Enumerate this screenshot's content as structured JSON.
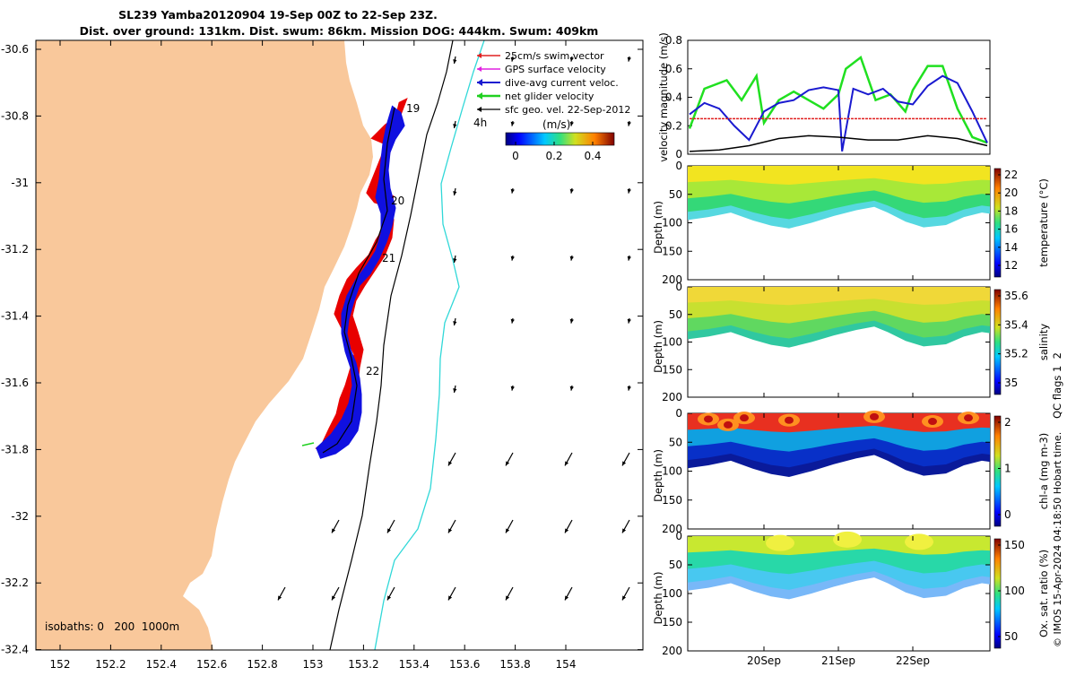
{
  "title_line1": "SL239 Yamba20120904 19-Sep 00Z to 22-Sep 23Z.",
  "title_line2": "Dist. over ground: 131km. Dist. swum: 86km. Mission DOG: 444km. Swum: 409km",
  "map": {
    "x_ticks": [
      "152",
      "152.2",
      "152.4",
      "152.6",
      "152.8",
      "153",
      "153.2",
      "153.4",
      "153.6",
      "153.8",
      "154"
    ],
    "y_ticks": [
      "-30.6",
      "-30.8",
      "-31",
      "-31.2",
      "-31.4",
      "-31.6",
      "-31.8",
      "-32",
      "-32.2",
      "-32.4"
    ],
    "legend": [
      {
        "label": "25cm/s swim vector",
        "color": "#e02020"
      },
      {
        "label": "GPS surface velocity",
        "color": "#e020e0"
      },
      {
        "label": "dive-avg current veloc.",
        "color": "#1a1ad0"
      },
      {
        "label": "net glider velocity",
        "color": "#20d020"
      },
      {
        "label": "sfc geo. vel. 22-Sep-2012",
        "color": "#000000"
      }
    ],
    "legend_extra": "4h",
    "colorbar_title": "(m/s)",
    "colorbar_ticks": [
      "0",
      "0.2",
      "0.4"
    ],
    "day_labels": [
      "19",
      "20",
      "21",
      "22"
    ],
    "isobaths_text": "isobaths: 0   200  1000m",
    "land_color": "#f9c89b"
  },
  "chart_data": [
    {
      "type": "line",
      "ylabel": "velocity magnitude (m/s)",
      "ylim": [
        0,
        0.8
      ],
      "y_ticks": [
        "0",
        "0.2",
        "0.4",
        "0.6",
        "0.8"
      ],
      "x_domain_days": [
        19,
        23
      ],
      "series": [
        {
          "color": "#20e020",
          "x": [
            19.0,
            19.2,
            19.5,
            19.7,
            19.9,
            20.0,
            20.2,
            20.4,
            20.6,
            20.8,
            21.0,
            21.1,
            21.3,
            21.5,
            21.7,
            21.9,
            22.0,
            22.2,
            22.4,
            22.6,
            22.8,
            23.0
          ],
          "values": [
            0.18,
            0.46,
            0.52,
            0.38,
            0.55,
            0.22,
            0.38,
            0.44,
            0.38,
            0.32,
            0.42,
            0.6,
            0.68,
            0.38,
            0.42,
            0.3,
            0.45,
            0.62,
            0.62,
            0.32,
            0.12,
            0.08
          ]
        },
        {
          "color": "#1a1ad0",
          "x": [
            19.0,
            19.2,
            19.4,
            19.6,
            19.8,
            20.0,
            20.2,
            20.4,
            20.6,
            20.8,
            21.0,
            21.05,
            21.2,
            21.4,
            21.6,
            21.8,
            22.0,
            22.2,
            22.4,
            22.6,
            22.8,
            23.0
          ],
          "values": [
            0.28,
            0.36,
            0.32,
            0.2,
            0.1,
            0.3,
            0.36,
            0.38,
            0.45,
            0.47,
            0.45,
            0.02,
            0.46,
            0.42,
            0.46,
            0.37,
            0.35,
            0.48,
            0.55,
            0.5,
            0.3,
            0.08
          ]
        },
        {
          "color": "#e02020",
          "x": [
            19.0,
            23.0
          ],
          "values": [
            0.25,
            0.25
          ]
        },
        {
          "color": "#000000",
          "x": [
            19.0,
            19.4,
            19.8,
            20.2,
            20.6,
            21.0,
            21.4,
            21.8,
            22.2,
            22.6,
            23.0
          ],
          "values": [
            0.02,
            0.03,
            0.06,
            0.11,
            0.13,
            0.12,
            0.1,
            0.1,
            0.13,
            0.11,
            0.06
          ]
        }
      ]
    },
    {
      "type": "heatmap",
      "ylabel": "Depth (m)",
      "ylim": [
        200,
        0
      ],
      "y_ticks": [
        "0",
        "50",
        "100",
        "150",
        "200"
      ],
      "colorbar_label": "temperature (°C)",
      "colorbar_ticks": [
        "12",
        "14",
        "16",
        "18",
        "20",
        "22"
      ]
    },
    {
      "type": "heatmap",
      "ylabel": "Depth (m)",
      "ylim": [
        200,
        0
      ],
      "y_ticks": [
        "0",
        "50",
        "100",
        "150",
        "200"
      ],
      "colorbar_label": "salinity",
      "colorbar_ticks": [
        "35",
        "35.2",
        "35.4",
        "35.6"
      ]
    },
    {
      "type": "heatmap",
      "ylabel": "Depth (m)",
      "ylim": [
        200,
        0
      ],
      "y_ticks": [
        "0",
        "50",
        "100",
        "150",
        "200"
      ],
      "colorbar_label": "chl-a (mg m-3)",
      "colorbar_ticks": [
        "0",
        "1",
        "2"
      ]
    },
    {
      "type": "heatmap",
      "ylabel": "Depth (m)",
      "ylim": [
        200,
        0
      ],
      "y_ticks": [
        "0",
        "50",
        "100",
        "150",
        "200"
      ],
      "x_ticks": [
        "20Sep",
        "21Sep",
        "22Sep"
      ],
      "colorbar_label": "Ox. sat. ratio (%)",
      "colorbar_ticks": [
        "50",
        "100",
        "150"
      ]
    }
  ],
  "side_note": "QC flags 1  2",
  "copyright": "© IMOS 15-Apr-2024 04:18:50 Hobart time."
}
